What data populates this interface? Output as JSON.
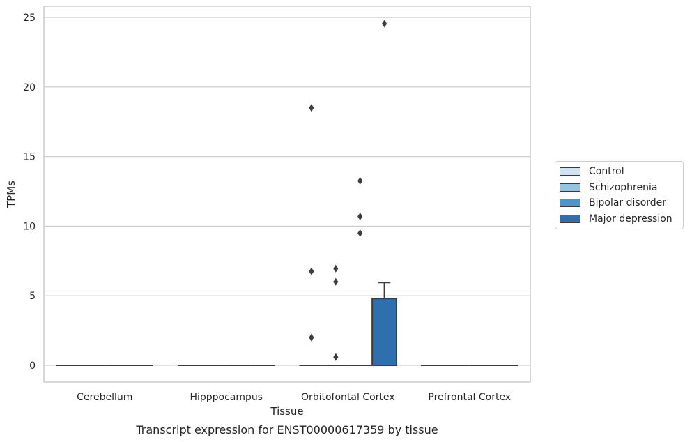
{
  "chart_data": {
    "type": "box",
    "xlabel": "Tissue",
    "ylabel": "TPMs",
    "caption": "Transcript expression for ENST00000617359 by tissue",
    "ylim": [
      -1.2,
      25.8
    ],
    "yticks": [
      0,
      5,
      10,
      15,
      20,
      25
    ],
    "grid": true,
    "legend_position": "right",
    "categories": [
      "Cerebellum",
      "Hipppocampus",
      "Orbitofontal Cortex",
      "Prefrontal Cortex"
    ],
    "series": [
      {
        "name": "Control",
        "color": "#d0e1f2",
        "boxes": [
          {
            "q1": 0,
            "median": 0,
            "q3": 0,
            "whisker_low": 0,
            "whisker_high": 0,
            "outliers": []
          },
          {
            "q1": 0,
            "median": 0,
            "q3": 0,
            "whisker_low": 0,
            "whisker_high": 0,
            "outliers": []
          },
          {
            "q1": 0,
            "median": 0,
            "q3": 0,
            "whisker_low": 0,
            "whisker_high": 0,
            "outliers": [
              6.75,
              18.5,
              2.0
            ]
          },
          {
            "q1": 0,
            "median": 0,
            "q3": 0,
            "whisker_low": 0,
            "whisker_high": 0,
            "outliers": []
          }
        ]
      },
      {
        "name": "Schizophrenia",
        "color": "#94c4df",
        "boxes": [
          {
            "q1": 0,
            "median": 0,
            "q3": 0,
            "whisker_low": 0,
            "whisker_high": 0,
            "outliers": []
          },
          {
            "q1": 0,
            "median": 0,
            "q3": 0,
            "whisker_low": 0,
            "whisker_high": 0,
            "outliers": []
          },
          {
            "q1": 0,
            "median": 0,
            "q3": 0,
            "whisker_low": 0,
            "whisker_high": 0,
            "outliers": [
              6.95,
              6.0,
              0.6
            ]
          },
          {
            "q1": 0,
            "median": 0,
            "q3": 0,
            "whisker_low": 0,
            "whisker_high": 0,
            "outliers": []
          }
        ]
      },
      {
        "name": "Bipolar disorder",
        "color": "#4a98c9",
        "boxes": [
          {
            "q1": 0,
            "median": 0,
            "q3": 0,
            "whisker_low": 0,
            "whisker_high": 0,
            "outliers": []
          },
          {
            "q1": 0,
            "median": 0,
            "q3": 0,
            "whisker_low": 0,
            "whisker_high": 0,
            "outliers": []
          },
          {
            "q1": 0,
            "median": 0,
            "q3": 0,
            "whisker_low": 0,
            "whisker_high": 0,
            "outliers": [
              13.25,
              10.7,
              9.5
            ]
          },
          {
            "q1": 0,
            "median": 0,
            "q3": 0,
            "whisker_low": 0,
            "whisker_high": 0,
            "outliers": []
          }
        ]
      },
      {
        "name": "Major depression",
        "color": "#2e6fae",
        "boxes": [
          {
            "q1": 0,
            "median": 0,
            "q3": 0,
            "whisker_low": 0,
            "whisker_high": 0,
            "outliers": []
          },
          {
            "q1": 0,
            "median": 0,
            "q3": 0,
            "whisker_low": 0,
            "whisker_high": 0,
            "outliers": []
          },
          {
            "q1": 0,
            "median": 0,
            "q3": 4.8,
            "whisker_low": 0,
            "whisker_high": 5.95,
            "outliers": [
              24.55
            ]
          },
          {
            "q1": 0,
            "median": 0,
            "q3": 0,
            "whisker_low": 0,
            "whisker_high": 0,
            "outliers": []
          }
        ]
      }
    ]
  }
}
